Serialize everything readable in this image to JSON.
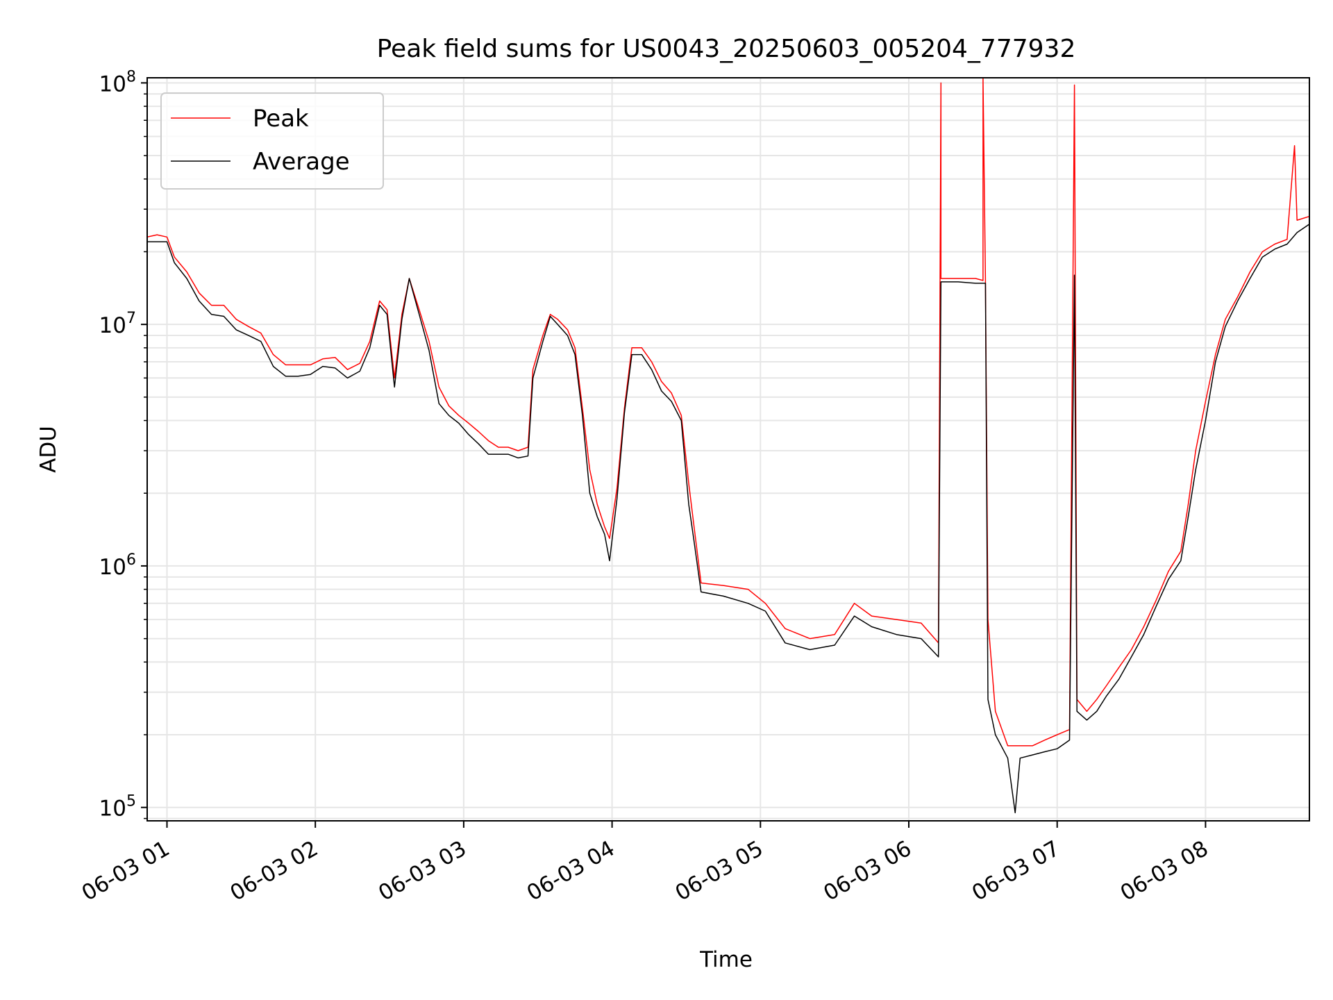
{
  "chart_data": {
    "type": "line",
    "title": "Peak field sums for US0043_20250603_005204_777932",
    "xlabel": "Time",
    "ylabel": "ADU",
    "yscale": "log",
    "xlim": [
      "2025-06-03 00:52",
      "2025-06-03 08:42"
    ],
    "ylim": [
      88000,
      105000000
    ],
    "grid": true,
    "legend_position": "upper-left",
    "x_ticks": [
      "06-03 01",
      "06-03 02",
      "06-03 03",
      "06-03 04",
      "06-03 05",
      "06-03 06",
      "06-03 07",
      "06-03 08"
    ],
    "y_ticks": [
      {
        "base": "10",
        "exp": "5",
        "value": 100000
      },
      {
        "base": "10",
        "exp": "6",
        "value": 1000000
      },
      {
        "base": "10",
        "exp": "7",
        "value": 10000000
      },
      {
        "base": "10",
        "exp": "8",
        "value": 100000000
      }
    ],
    "series": [
      {
        "name": "Peak",
        "color": "#ff0000",
        "points": [
          [
            "2025-06-03 00:52",
            23000000
          ],
          [
            "2025-06-03 00:56",
            23500000
          ],
          [
            "2025-06-03 01:00",
            23000000
          ],
          [
            "2025-06-03 01:03",
            19000000
          ],
          [
            "2025-06-03 01:08",
            16500000
          ],
          [
            "2025-06-03 01:13",
            13500000
          ],
          [
            "2025-06-03 01:18",
            12000000
          ],
          [
            "2025-06-03 01:23",
            12000000
          ],
          [
            "2025-06-03 01:28",
            10500000
          ],
          [
            "2025-06-03 01:33",
            9800000
          ],
          [
            "2025-06-03 01:38",
            9200000
          ],
          [
            "2025-06-03 01:43",
            7500000
          ],
          [
            "2025-06-03 01:48",
            6800000
          ],
          [
            "2025-06-03 01:53",
            6800000
          ],
          [
            "2025-06-03 01:58",
            6800000
          ],
          [
            "2025-06-03 02:03",
            7200000
          ],
          [
            "2025-06-03 02:08",
            7300000
          ],
          [
            "2025-06-03 02:13",
            6500000
          ],
          [
            "2025-06-03 02:18",
            6900000
          ],
          [
            "2025-06-03 02:22",
            8500000
          ],
          [
            "2025-06-03 02:26",
            12500000
          ],
          [
            "2025-06-03 02:29",
            11500000
          ],
          [
            "2025-06-03 02:32",
            6000000
          ],
          [
            "2025-06-03 02:35",
            11000000
          ],
          [
            "2025-06-03 02:38",
            15500000
          ],
          [
            "2025-06-03 02:42",
            11500000
          ],
          [
            "2025-06-03 02:46",
            8500000
          ],
          [
            "2025-06-03 02:50",
            5500000
          ],
          [
            "2025-06-03 02:54",
            4600000
          ],
          [
            "2025-06-03 02:58",
            4200000
          ],
          [
            "2025-06-03 03:02",
            3900000
          ],
          [
            "2025-06-03 03:06",
            3600000
          ],
          [
            "2025-06-03 03:10",
            3300000
          ],
          [
            "2025-06-03 03:14",
            3100000
          ],
          [
            "2025-06-03 03:18",
            3100000
          ],
          [
            "2025-06-03 03:22",
            3000000
          ],
          [
            "2025-06-03 03:26",
            3100000
          ],
          [
            "2025-06-03 03:28",
            6500000
          ],
          [
            "2025-06-03 03:32",
            9000000
          ],
          [
            "2025-06-03 03:35",
            11000000
          ],
          [
            "2025-06-03 03:38",
            10500000
          ],
          [
            "2025-06-03 03:42",
            9500000
          ],
          [
            "2025-06-03 03:45",
            8000000
          ],
          [
            "2025-06-03 03:48",
            4500000
          ],
          [
            "2025-06-03 03:51",
            2500000
          ],
          [
            "2025-06-03 03:54",
            1800000
          ],
          [
            "2025-06-03 03:57",
            1450000
          ],
          [
            "2025-06-03 03:59",
            1300000
          ],
          [
            "2025-06-03 04:02",
            2100000
          ],
          [
            "2025-06-03 04:05",
            4500000
          ],
          [
            "2025-06-03 04:08",
            8000000
          ],
          [
            "2025-06-03 04:12",
            8000000
          ],
          [
            "2025-06-03 04:16",
            7000000
          ],
          [
            "2025-06-03 04:20",
            5800000
          ],
          [
            "2025-06-03 04:24",
            5200000
          ],
          [
            "2025-06-03 04:28",
            4200000
          ],
          [
            "2025-06-03 04:31",
            2200000
          ],
          [
            "2025-06-03 04:33",
            1500000
          ],
          [
            "2025-06-03 04:36",
            850000
          ],
          [
            "2025-06-03 04:45",
            830000
          ],
          [
            "2025-06-03 04:55",
            800000
          ],
          [
            "2025-06-03 05:02",
            700000
          ],
          [
            "2025-06-03 05:10",
            550000
          ],
          [
            "2025-06-03 05:20",
            500000
          ],
          [
            "2025-06-03 05:30",
            520000
          ],
          [
            "2025-06-03 05:38",
            700000
          ],
          [
            "2025-06-03 05:45",
            620000
          ],
          [
            "2025-06-03 05:55",
            600000
          ],
          [
            "2025-06-03 06:05",
            580000
          ],
          [
            "2025-06-03 06:12",
            480000
          ],
          [
            "2025-06-03 06:13",
            100000000
          ],
          [
            "2025-06-03 06:13",
            15500000
          ],
          [
            "2025-06-03 06:20",
            15500000
          ],
          [
            "2025-06-03 06:27",
            15500000
          ],
          [
            "2025-06-03 06:30",
            15200000
          ],
          [
            "2025-06-03 06:30",
            105000000
          ],
          [
            "2025-06-03 06:31",
            15200000
          ],
          [
            "2025-06-03 06:32",
            600000
          ],
          [
            "2025-06-03 06:35",
            250000
          ],
          [
            "2025-06-03 06:40",
            180000
          ],
          [
            "2025-06-03 06:45",
            180000
          ],
          [
            "2025-06-03 06:50",
            180000
          ],
          [
            "2025-06-03 06:55",
            190000
          ],
          [
            "2025-06-03 07:00",
            200000
          ],
          [
            "2025-06-03 07:05",
            210000
          ],
          [
            "2025-06-03 07:07",
            98000000
          ],
          [
            "2025-06-03 07:08",
            280000
          ],
          [
            "2025-06-03 07:12",
            250000
          ],
          [
            "2025-06-03 07:16",
            280000
          ],
          [
            "2025-06-03 07:20",
            320000
          ],
          [
            "2025-06-03 07:25",
            380000
          ],
          [
            "2025-06-03 07:30",
            450000
          ],
          [
            "2025-06-03 07:35",
            560000
          ],
          [
            "2025-06-03 07:40",
            720000
          ],
          [
            "2025-06-03 07:45",
            950000
          ],
          [
            "2025-06-03 07:50",
            1150000
          ],
          [
            "2025-06-03 07:53",
            1800000
          ],
          [
            "2025-06-03 07:56",
            3000000
          ],
          [
            "2025-06-03 08:00",
            4800000
          ],
          [
            "2025-06-03 08:04",
            7500000
          ],
          [
            "2025-06-03 08:08",
            10500000
          ],
          [
            "2025-06-03 08:13",
            13000000
          ],
          [
            "2025-06-03 08:18",
            16500000
          ],
          [
            "2025-06-03 08:23",
            20000000
          ],
          [
            "2025-06-03 08:28",
            21500000
          ],
          [
            "2025-06-03 08:33",
            22500000
          ],
          [
            "2025-06-03 08:36",
            55000000
          ],
          [
            "2025-06-03 08:37",
            27000000
          ],
          [
            "2025-06-03 08:42",
            28000000
          ]
        ]
      },
      {
        "name": "Average",
        "color": "#000000",
        "points": [
          [
            "2025-06-03 00:52",
            22000000
          ],
          [
            "2025-06-03 00:56",
            22000000
          ],
          [
            "2025-06-03 01:00",
            22000000
          ],
          [
            "2025-06-03 01:03",
            18000000
          ],
          [
            "2025-06-03 01:08",
            15500000
          ],
          [
            "2025-06-03 01:13",
            12500000
          ],
          [
            "2025-06-03 01:18",
            11000000
          ],
          [
            "2025-06-03 01:23",
            10800000
          ],
          [
            "2025-06-03 01:28",
            9500000
          ],
          [
            "2025-06-03 01:33",
            9000000
          ],
          [
            "2025-06-03 01:38",
            8500000
          ],
          [
            "2025-06-03 01:43",
            6700000
          ],
          [
            "2025-06-03 01:48",
            6100000
          ],
          [
            "2025-06-03 01:53",
            6100000
          ],
          [
            "2025-06-03 01:58",
            6200000
          ],
          [
            "2025-06-03 02:03",
            6700000
          ],
          [
            "2025-06-03 02:08",
            6600000
          ],
          [
            "2025-06-03 02:13",
            6000000
          ],
          [
            "2025-06-03 02:18",
            6400000
          ],
          [
            "2025-06-03 02:22",
            8000000
          ],
          [
            "2025-06-03 02:26",
            12000000
          ],
          [
            "2025-06-03 02:29",
            11000000
          ],
          [
            "2025-06-03 02:32",
            5500000
          ],
          [
            "2025-06-03 02:35",
            10500000
          ],
          [
            "2025-06-03 02:38",
            15500000
          ],
          [
            "2025-06-03 02:42",
            11000000
          ],
          [
            "2025-06-03 02:46",
            7800000
          ],
          [
            "2025-06-03 02:50",
            4700000
          ],
          [
            "2025-06-03 02:54",
            4200000
          ],
          [
            "2025-06-03 02:58",
            3900000
          ],
          [
            "2025-06-03 03:02",
            3500000
          ],
          [
            "2025-06-03 03:06",
            3200000
          ],
          [
            "2025-06-03 03:10",
            2900000
          ],
          [
            "2025-06-03 03:14",
            2900000
          ],
          [
            "2025-06-03 03:18",
            2900000
          ],
          [
            "2025-06-03 03:22",
            2800000
          ],
          [
            "2025-06-03 03:26",
            2850000
          ],
          [
            "2025-06-03 03:28",
            6000000
          ],
          [
            "2025-06-03 03:32",
            8500000
          ],
          [
            "2025-06-03 03:35",
            10800000
          ],
          [
            "2025-06-03 03:38",
            10000000
          ],
          [
            "2025-06-03 03:42",
            9000000
          ],
          [
            "2025-06-03 03:45",
            7500000
          ],
          [
            "2025-06-03 03:48",
            4200000
          ],
          [
            "2025-06-03 03:51",
            2000000
          ],
          [
            "2025-06-03 03:54",
            1600000
          ],
          [
            "2025-06-03 03:57",
            1350000
          ],
          [
            "2025-06-03 03:59",
            1050000
          ],
          [
            "2025-06-03 04:02",
            1900000
          ],
          [
            "2025-06-03 04:05",
            4300000
          ],
          [
            "2025-06-03 04:08",
            7500000
          ],
          [
            "2025-06-03 04:12",
            7500000
          ],
          [
            "2025-06-03 04:16",
            6500000
          ],
          [
            "2025-06-03 04:20",
            5300000
          ],
          [
            "2025-06-03 04:24",
            4800000
          ],
          [
            "2025-06-03 04:28",
            4000000
          ],
          [
            "2025-06-03 04:31",
            1800000
          ],
          [
            "2025-06-03 04:33",
            1300000
          ],
          [
            "2025-06-03 04:36",
            780000
          ],
          [
            "2025-06-03 04:45",
            750000
          ],
          [
            "2025-06-03 04:55",
            700000
          ],
          [
            "2025-06-03 05:02",
            650000
          ],
          [
            "2025-06-03 05:10",
            480000
          ],
          [
            "2025-06-03 05:20",
            450000
          ],
          [
            "2025-06-03 05:30",
            470000
          ],
          [
            "2025-06-03 05:38",
            620000
          ],
          [
            "2025-06-03 05:45",
            560000
          ],
          [
            "2025-06-03 05:55",
            520000
          ],
          [
            "2025-06-03 06:05",
            500000
          ],
          [
            "2025-06-03 06:12",
            420000
          ],
          [
            "2025-06-03 06:13",
            15000000
          ],
          [
            "2025-06-03 06:20",
            15000000
          ],
          [
            "2025-06-03 06:27",
            14800000
          ],
          [
            "2025-06-03 06:31",
            14800000
          ],
          [
            "2025-06-03 06:32",
            280000
          ],
          [
            "2025-06-03 06:35",
            200000
          ],
          [
            "2025-06-03 06:40",
            160000
          ],
          [
            "2025-06-03 06:43",
            95000
          ],
          [
            "2025-06-03 06:45",
            160000
          ],
          [
            "2025-06-03 06:50",
            165000
          ],
          [
            "2025-06-03 06:55",
            170000
          ],
          [
            "2025-06-03 07:00",
            175000
          ],
          [
            "2025-06-03 07:05",
            190000
          ],
          [
            "2025-06-03 07:07",
            16000000
          ],
          [
            "2025-06-03 07:08",
            250000
          ],
          [
            "2025-06-03 07:12",
            230000
          ],
          [
            "2025-06-03 07:16",
            250000
          ],
          [
            "2025-06-03 07:20",
            290000
          ],
          [
            "2025-06-03 07:25",
            340000
          ],
          [
            "2025-06-03 07:30",
            420000
          ],
          [
            "2025-06-03 07:35",
            520000
          ],
          [
            "2025-06-03 07:40",
            680000
          ],
          [
            "2025-06-03 07:45",
            880000
          ],
          [
            "2025-06-03 07:50",
            1050000
          ],
          [
            "2025-06-03 07:53",
            1600000
          ],
          [
            "2025-06-03 07:56",
            2500000
          ],
          [
            "2025-06-03 08:00",
            4000000
          ],
          [
            "2025-06-03 08:04",
            7000000
          ],
          [
            "2025-06-03 08:08",
            9800000
          ],
          [
            "2025-06-03 08:13",
            12500000
          ],
          [
            "2025-06-03 08:18",
            15500000
          ],
          [
            "2025-06-03 08:23",
            19000000
          ],
          [
            "2025-06-03 08:28",
            20500000
          ],
          [
            "2025-06-03 08:33",
            21500000
          ],
          [
            "2025-06-03 08:37",
            24000000
          ],
          [
            "2025-06-03 08:42",
            26000000
          ]
        ]
      }
    ]
  }
}
